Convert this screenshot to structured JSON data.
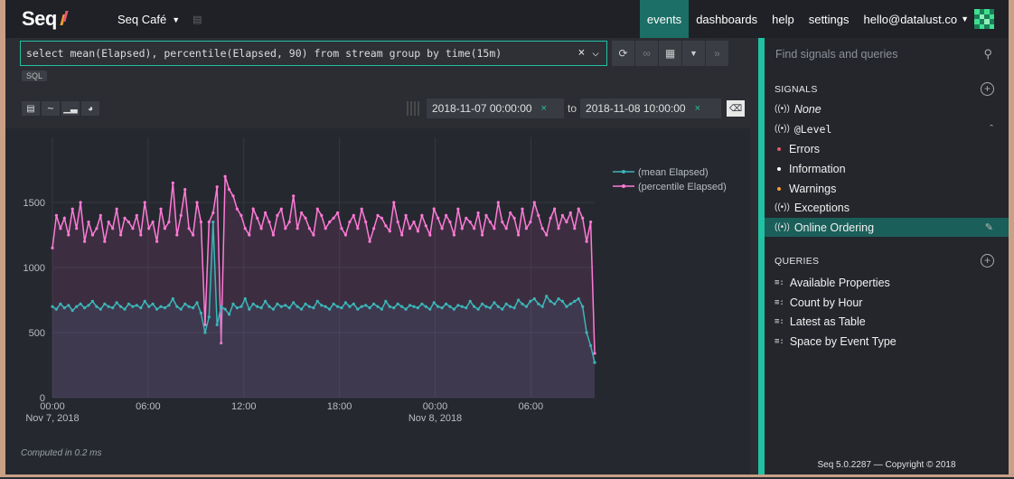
{
  "app": {
    "logo": "Seq",
    "workspace": "Seq Café"
  },
  "nav": {
    "events": "events",
    "dashboards": "dashboards",
    "help": "help",
    "settings": "settings",
    "user": "hello@datalust.co"
  },
  "query": {
    "text": "select mean(Elapsed), percentile(Elapsed, 90) from stream group by time(15m)",
    "language": "SQL"
  },
  "range": {
    "from": "2018-11-07 00:00:00",
    "to_label": "to",
    "to": "2018-11-08 10:00:00"
  },
  "computed": "Computed in 0.2 ms",
  "sidebar": {
    "search_placeholder": "Find signals and queries",
    "signals_title": "SIGNALS",
    "signals": {
      "none": "None",
      "level": "@Level",
      "errors": "Errors",
      "information": "Information",
      "warnings": "Warnings",
      "exceptions": "Exceptions",
      "online_ordering": "Online Ordering"
    },
    "queries_title": "QUERIES",
    "queries": [
      "Available Properties",
      "Count by Hour",
      "Latest as Table",
      "Space by Event Type"
    ],
    "footer": "Seq 5.0.2287 — Copyright © 2018"
  },
  "colors": {
    "accent": "#21c1a3",
    "mean": "#3bb6b8",
    "percentile": "#ff7ad6",
    "error": "#e05a6b",
    "info": "#ffffff",
    "warning": "#f0a030"
  },
  "chart_data": {
    "type": "line",
    "x_tick_labels": [
      "00:00",
      "06:00",
      "12:00",
      "18:00",
      "00:00",
      "06:00"
    ],
    "x_tick_sublabels": [
      "Nov 7, 2018",
      "Nov 8, 2018"
    ],
    "y_tick_labels": [
      "0",
      "500",
      "1000",
      "1500"
    ],
    "ylim": [
      0,
      2000
    ],
    "x_start": "2018-11-07 00:00",
    "x_end": "2018-11-08 10:00",
    "series": [
      {
        "name": "(mean Elapsed)",
        "color": "#3bb6b8",
        "values": [
          700,
          680,
          720,
          690,
          710,
          670,
          700,
          720,
          690,
          710,
          740,
          700,
          680,
          720,
          700,
          690,
          730,
          700,
          680,
          720,
          700,
          710,
          690,
          740,
          700,
          720,
          680,
          700,
          690,
          710,
          760,
          700,
          680,
          720,
          700,
          690,
          730,
          650,
          500,
          620,
          1350,
          560,
          700,
          680,
          640,
          720,
          690,
          700,
          760,
          680,
          720,
          700,
          690,
          740,
          700,
          680,
          720,
          700,
          710,
          690,
          730,
          700,
          680,
          720,
          700,
          690,
          740,
          710,
          700,
          680,
          720,
          700,
          690,
          730,
          700,
          720,
          680,
          700,
          710,
          690,
          720,
          700,
          680,
          740,
          700,
          690,
          720,
          700,
          680,
          710,
          700,
          690,
          720,
          700,
          680,
          730,
          700,
          690,
          720,
          700,
          680,
          710,
          700,
          690,
          740,
          700,
          680,
          720,
          700,
          690,
          730,
          700,
          680,
          720,
          700,
          690,
          750,
          720,
          700,
          740,
          760,
          720,
          700,
          780,
          740,
          720,
          760,
          740,
          700,
          720,
          740,
          760,
          700,
          500,
          400,
          270
        ]
      },
      {
        "name": "(percentile Elapsed)",
        "color": "#ff7ad6",
        "values": [
          1150,
          1400,
          1300,
          1380,
          1250,
          1450,
          1300,
          1500,
          1200,
          1350,
          1250,
          1300,
          1400,
          1200,
          1350,
          1300,
          1450,
          1250,
          1380,
          1350,
          1300,
          1400,
          1250,
          1500,
          1300,
          1350,
          1200,
          1450,
          1300,
          1350,
          1650,
          1250,
          1400,
          1600,
          1300,
          1250,
          1500,
          1350,
          560,
          1350,
          1420,
          1620,
          420,
          1700,
          1600,
          1550,
          1450,
          1400,
          1300,
          1250,
          1450,
          1380,
          1300,
          1420,
          1350,
          1250,
          1400,
          1450,
          1300,
          1350,
          1550,
          1300,
          1420,
          1380,
          1300,
          1250,
          1450,
          1400,
          1300,
          1350,
          1380,
          1420,
          1300,
          1250,
          1350,
          1400,
          1300,
          1450,
          1350,
          1200,
          1300,
          1400,
          1380,
          1320,
          1280,
          1500,
          1350,
          1250,
          1400,
          1300,
          1350,
          1280,
          1400,
          1320,
          1250,
          1450,
          1380,
          1300,
          1400,
          1350,
          1250,
          1450,
          1300,
          1380,
          1350,
          1300,
          1420,
          1250,
          1400,
          1350,
          1300,
          1500,
          1350,
          1300,
          1420,
          1380,
          1250,
          1450,
          1300,
          1350,
          1500,
          1400,
          1300,
          1250,
          1380,
          1450,
          1300,
          1400,
          1350,
          1420,
          1300,
          1450,
          1380,
          1200,
          1350,
          340
        ]
      }
    ],
    "grid": true,
    "legend": "top-right"
  }
}
